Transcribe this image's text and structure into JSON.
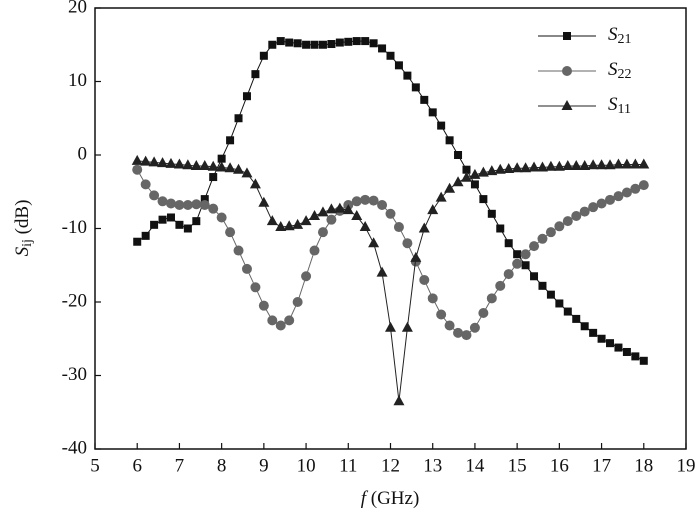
{
  "chart_data": {
    "type": "line",
    "x_label": "f (GHz)",
    "y_label": "Sij (dB)",
    "xlim": [
      5,
      19
    ],
    "ylim": [
      -40,
      20
    ],
    "xticks": [
      5,
      6,
      7,
      8,
      9,
      10,
      11,
      12,
      13,
      14,
      15,
      16,
      17,
      18,
      19
    ],
    "yticks": [
      -40,
      -30,
      -20,
      -10,
      0,
      10,
      20
    ],
    "legend": "upper right",
    "x": [
      6,
      6.2,
      6.4,
      6.6,
      6.8,
      7,
      7.2,
      7.4,
      7.6,
      7.8,
      8,
      8.2,
      8.4,
      8.6,
      8.8,
      9,
      9.2,
      9.4,
      9.6,
      9.8,
      10,
      10.2,
      10.4,
      10.6,
      10.8,
      11,
      11.2,
      11.4,
      11.6,
      11.8,
      12,
      12.2,
      12.4,
      12.6,
      12.8,
      13,
      13.2,
      13.4,
      13.6,
      13.8,
      14,
      14.2,
      14.4,
      14.6,
      14.8,
      15,
      15.2,
      15.4,
      15.6,
      15.8,
      16,
      16.2,
      16.4,
      16.6,
      16.8,
      17,
      17.2,
      17.4,
      17.6,
      17.8,
      18
    ],
    "series": [
      {
        "name": "S21",
        "color": "#111111",
        "marker": "square",
        "values": [
          -11.8,
          -11,
          -9.5,
          -8.8,
          -8.5,
          -9.5,
          -10,
          -9,
          -6,
          -3,
          -0.5,
          2,
          5,
          8,
          11,
          13.5,
          15,
          15.5,
          15.3,
          15.2,
          15,
          15,
          15,
          15.1,
          15.3,
          15.4,
          15.5,
          15.5,
          15.2,
          14.5,
          13.5,
          12.2,
          10.8,
          9.2,
          7.5,
          5.8,
          4,
          2,
          0,
          -2,
          -4,
          -6,
          -8,
          -10,
          -12,
          -13.5,
          -15,
          -16.5,
          -17.8,
          -19,
          -20.2,
          -21.3,
          -22.3,
          -23.3,
          -24.2,
          -25,
          -25.6,
          -26.2,
          -26.8,
          -27.4,
          -28
        ]
      },
      {
        "name": "S22",
        "color": "#666666",
        "marker": "circle",
        "values": [
          -2,
          -4,
          -5.5,
          -6.3,
          -6.6,
          -6.8,
          -6.8,
          -6.7,
          -6.8,
          -7.3,
          -8.5,
          -10.5,
          -13,
          -15.5,
          -18,
          -20.5,
          -22.5,
          -23.2,
          -22.5,
          -20,
          -16.5,
          -13,
          -10.5,
          -8.8,
          -7.6,
          -6.8,
          -6.3,
          -6.1,
          -6.2,
          -6.8,
          -8,
          -9.8,
          -12,
          -14.5,
          -17,
          -19.5,
          -21.7,
          -23.2,
          -24.2,
          -24.5,
          -23.5,
          -21.5,
          -19.5,
          -17.8,
          -16.2,
          -14.8,
          -13.5,
          -12.4,
          -11.4,
          -10.5,
          -9.7,
          -9,
          -8.3,
          -7.7,
          -7.1,
          -6.6,
          -6.1,
          -5.6,
          -5.1,
          -4.6,
          -4.1
        ]
      },
      {
        "name": "S11",
        "color": "#222222",
        "marker": "triangle",
        "values": [
          -0.8,
          -0.9,
          -1,
          -1.1,
          -1.2,
          -1.3,
          -1.4,
          -1.5,
          -1.5,
          -1.6,
          -1.7,
          -1.8,
          -2,
          -2.5,
          -4,
          -6.5,
          -9,
          -9.8,
          -9.7,
          -9.5,
          -9,
          -8.3,
          -7.8,
          -7.4,
          -7.3,
          -7.5,
          -8.3,
          -9.8,
          -12,
          -16,
          -23.5,
          -33.5,
          -23.5,
          -14,
          -10,
          -7.5,
          -5.8,
          -4.6,
          -3.7,
          -3.1,
          -2.7,
          -2.4,
          -2.2,
          -2,
          -1.9,
          -1.8,
          -1.8,
          -1.7,
          -1.7,
          -1.6,
          -1.6,
          -1.5,
          -1.5,
          -1.5,
          -1.4,
          -1.4,
          -1.4,
          -1.3,
          -1.3,
          -1.3,
          -1.3
        ]
      }
    ]
  }
}
